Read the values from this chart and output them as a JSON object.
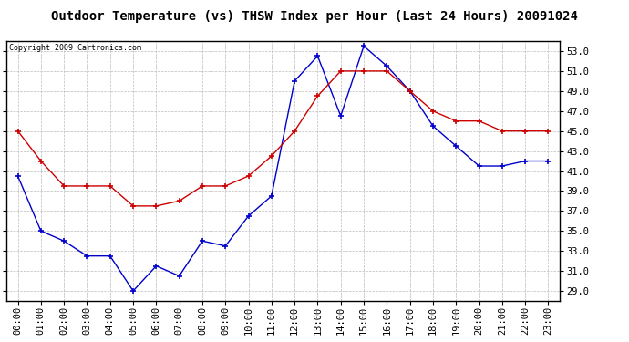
{
  "title": "Outdoor Temperature (vs) THSW Index per Hour (Last 24 Hours) 20091024",
  "copyright": "Copyright 2009 Cartronics.com",
  "x_labels": [
    "00:00",
    "01:00",
    "02:00",
    "03:00",
    "04:00",
    "05:00",
    "06:00",
    "07:00",
    "08:00",
    "09:00",
    "10:00",
    "11:00",
    "12:00",
    "13:00",
    "14:00",
    "15:00",
    "16:00",
    "17:00",
    "18:00",
    "19:00",
    "20:00",
    "21:00",
    "22:00",
    "23:00"
  ],
  "thsw_data": [
    40.5,
    35.0,
    34.0,
    32.5,
    32.5,
    29.0,
    31.5,
    30.5,
    34.0,
    33.5,
    36.5,
    38.5,
    50.0,
    52.5,
    46.5,
    53.5,
    51.5,
    49.0,
    45.5,
    43.5,
    41.5,
    41.5,
    42.0,
    42.0
  ],
  "temp_data": [
    45.0,
    42.0,
    39.5,
    39.5,
    39.5,
    37.5,
    37.5,
    38.0,
    39.5,
    39.5,
    40.5,
    42.5,
    45.0,
    48.5,
    51.0,
    51.0,
    51.0,
    49.0,
    47.0,
    46.0,
    46.0,
    45.0,
    45.0,
    45.0
  ],
  "thsw_color": "#0000cc",
  "temp_color": "#cc0000",
  "marker": "+",
  "marker_size": 5,
  "linewidth": 1.0,
  "ylim": [
    28.0,
    54.0
  ],
  "yticks": [
    29.0,
    31.0,
    33.0,
    35.0,
    37.0,
    39.0,
    41.0,
    43.0,
    45.0,
    47.0,
    49.0,
    51.0,
    53.0
  ],
  "bg_color": "#ffffff",
  "plot_bg_color": "#ffffff",
  "grid_color": "#bbbbbb",
  "title_fontsize": 10,
  "copyright_fontsize": 6,
  "tick_fontsize": 7.5
}
